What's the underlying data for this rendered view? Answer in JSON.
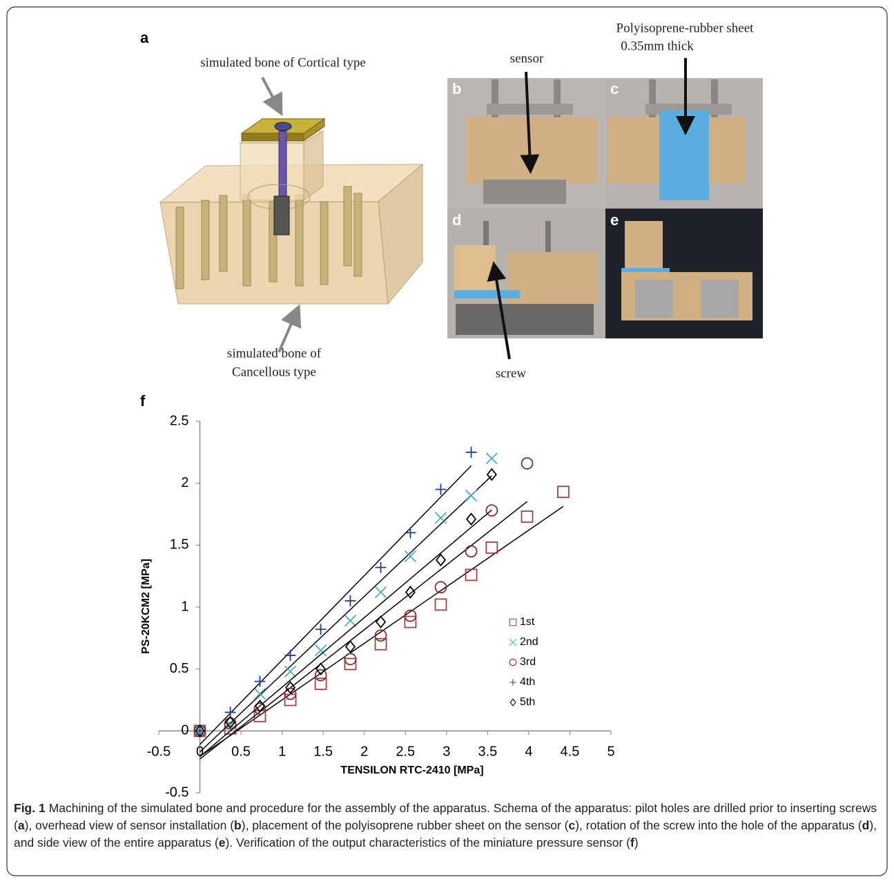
{
  "panel_a": {
    "label": "a",
    "cortical_annotation": "simulated bone of Cortical type",
    "cancellous_annotation": [
      "simulated bone of",
      "Cancellous type"
    ]
  },
  "photos": {
    "b": {
      "label": "b",
      "annotation": "sensor"
    },
    "c": {
      "label": "c",
      "annotation": [
        "Polyisoprene-rubber sheet",
        "0.35mm thick"
      ]
    },
    "d": {
      "label": "d",
      "annotation": "screw"
    },
    "e": {
      "label": "e"
    }
  },
  "chart_data": {
    "type": "scatter",
    "panel_label": "f",
    "x_label": "TENSILON RTC-2410 [MPa]",
    "y_label": "PS-20KCM2 [MPa]",
    "xlim": [
      -0.5,
      5
    ],
    "ylim": [
      -0.5,
      2.5
    ],
    "xticks": [
      -0.5,
      0,
      0.5,
      1,
      1.5,
      2,
      2.5,
      3,
      3.5,
      4,
      4.5,
      5
    ],
    "yticks": [
      -0.5,
      0,
      0.5,
      1,
      1.5,
      2,
      2.5
    ],
    "trendline": true,
    "series": [
      {
        "name": "1st",
        "color": "#a5423f",
        "marker": "square",
        "x": [
          0,
          0.37,
          0.73,
          1.1,
          1.47,
          1.83,
          2.2,
          2.56,
          2.93,
          3.3,
          3.55,
          3.98,
          4.42
        ],
        "values": [
          0,
          0.02,
          0.12,
          0.25,
          0.38,
          0.54,
          0.7,
          0.88,
          1.02,
          1.26,
          1.48,
          1.73,
          1.93
        ]
      },
      {
        "name": "2nd",
        "color": "#4bacc6",
        "marker": "x",
        "x": [
          0,
          0.37,
          0.73,
          1.1,
          1.47,
          1.83,
          2.2,
          2.56,
          2.93,
          3.3,
          3.55
        ],
        "values": [
          0,
          0.05,
          0.3,
          0.48,
          0.65,
          0.89,
          1.12,
          1.41,
          1.72,
          1.9,
          2.2
        ]
      },
      {
        "name": "3rd",
        "color": "#8b2c2c",
        "marker": "circle",
        "x": [
          0,
          0.37,
          0.73,
          1.1,
          1.47,
          1.83,
          2.2,
          2.56,
          2.93,
          3.3,
          3.55,
          3.98
        ],
        "values": [
          0,
          0.06,
          0.18,
          0.3,
          0.45,
          0.58,
          0.77,
          0.93,
          1.16,
          1.45,
          1.78,
          2.16
        ]
      },
      {
        "name": "4th",
        "color": "#1f3f86",
        "marker": "plus",
        "x": [
          0,
          0.37,
          0.73,
          1.1,
          1.47,
          1.83,
          2.2,
          2.56,
          2.93,
          3.3
        ],
        "values": [
          0,
          0.15,
          0.4,
          0.61,
          0.82,
          1.05,
          1.32,
          1.6,
          1.95,
          2.25
        ]
      },
      {
        "name": "5th",
        "color": "#000000",
        "marker": "diamond",
        "x": [
          0,
          0.37,
          0.73,
          1.1,
          1.47,
          1.83,
          2.2,
          2.56,
          2.93,
          3.3,
          3.55
        ],
        "values": [
          0,
          0.07,
          0.2,
          0.35,
          0.5,
          0.68,
          0.88,
          1.12,
          1.38,
          1.71,
          2.07
        ]
      }
    ]
  },
  "caption": {
    "label": "Fig. 1",
    "parts": [
      "Machining of the simulated bone and procedure for the assembly of the apparatus. Schema of the apparatus: pilot holes are drilled prior to inserting screws (",
      "a",
      "), overhead view of sensor installation (",
      "b",
      "), placement of the polyisoprene rubber sheet on the sensor (",
      "c",
      "), rotation of the screw into the hole of the apparatus (",
      "d",
      "), and side view of the entire apparatus (",
      "e",
      "). Verification of the output characteristics of the miniature pressure sensor (",
      "f",
      ")"
    ]
  }
}
